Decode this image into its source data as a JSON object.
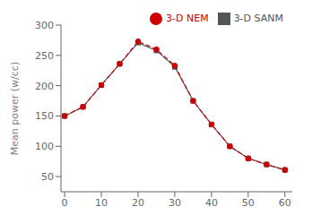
{
  "chart_data": {
    "type": "line",
    "x": [
      0,
      5,
      10,
      15,
      20,
      25,
      30,
      35,
      40,
      45,
      50,
      55,
      60
    ],
    "series": [
      {
        "name": "3-D SANM",
        "color": "#555555",
        "values": [
          150,
          165,
          201,
          236,
          271,
          258,
          231,
          175,
          136,
          100,
          80,
          70,
          61
        ],
        "marker": "square",
        "line_style": "solid"
      },
      {
        "name": "3-D NEM",
        "color": "#cc0000",
        "values": [
          150,
          165,
          201,
          236,
          273,
          260,
          233,
          175,
          136,
          100,
          80,
          70,
          61
        ],
        "marker": "circle",
        "line_style": "dashed"
      }
    ],
    "ylabel": "Mean power (w/cc)",
    "xlim": [
      -1,
      62
    ],
    "ylim": [
      25,
      300
    ],
    "xticks": [
      0,
      10,
      20,
      30,
      40,
      50,
      60
    ],
    "yticks": [
      50,
      100,
      150,
      200,
      250,
      300
    ],
    "grid": false,
    "legend": "upper right"
  }
}
